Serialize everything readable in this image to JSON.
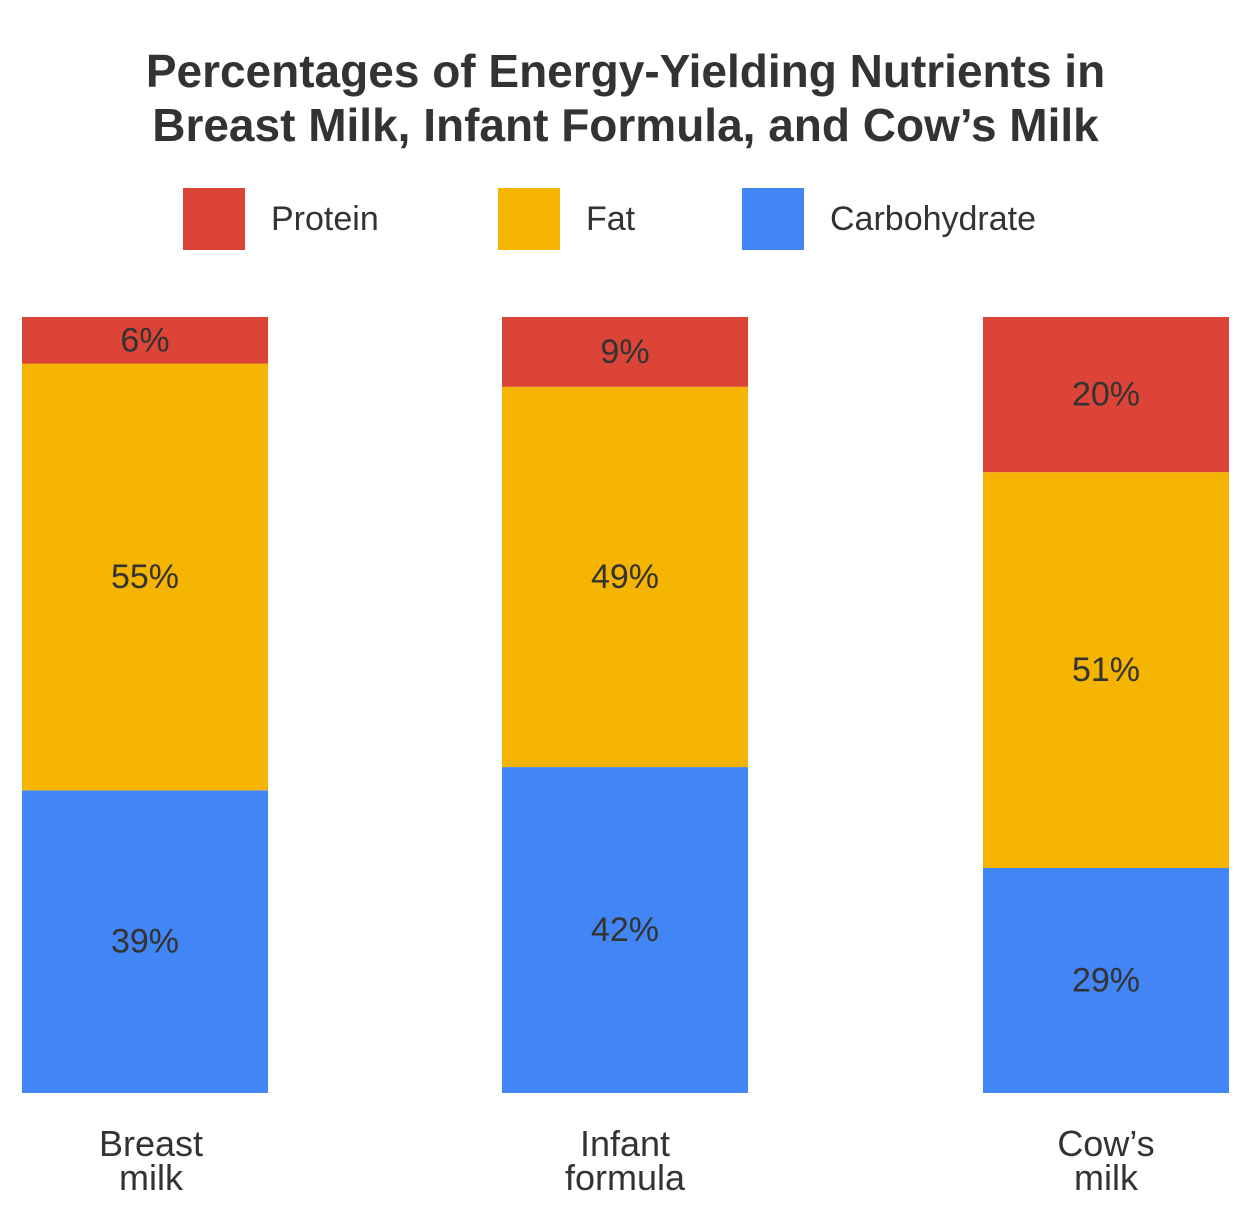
{
  "chart_data": {
    "type": "stacked_bar",
    "title": "Percentages of Energy-Yielding Nutrients in\nBreast Milk, Infant Formula, and Cow’s Milk",
    "categories": [
      "Breast\nmilk",
      "Infant\nformula",
      "Cow’s\nmilk"
    ],
    "series": [
      {
        "name": "Protein",
        "color": "#db4437",
        "values": [
          6,
          9,
          20
        ],
        "value_labels": [
          "6%",
          "9%",
          "20%"
        ]
      },
      {
        "name": "Fat",
        "color": "#f4b400",
        "values": [
          55,
          49,
          51
        ],
        "value_labels": [
          "55%",
          "49%",
          "51%"
        ]
      },
      {
        "name": "Carbohydrate",
        "color": "#4285f4",
        "values": [
          39,
          42,
          29
        ],
        "value_labels": [
          "39%",
          "42%",
          "29%"
        ]
      }
    ]
  }
}
